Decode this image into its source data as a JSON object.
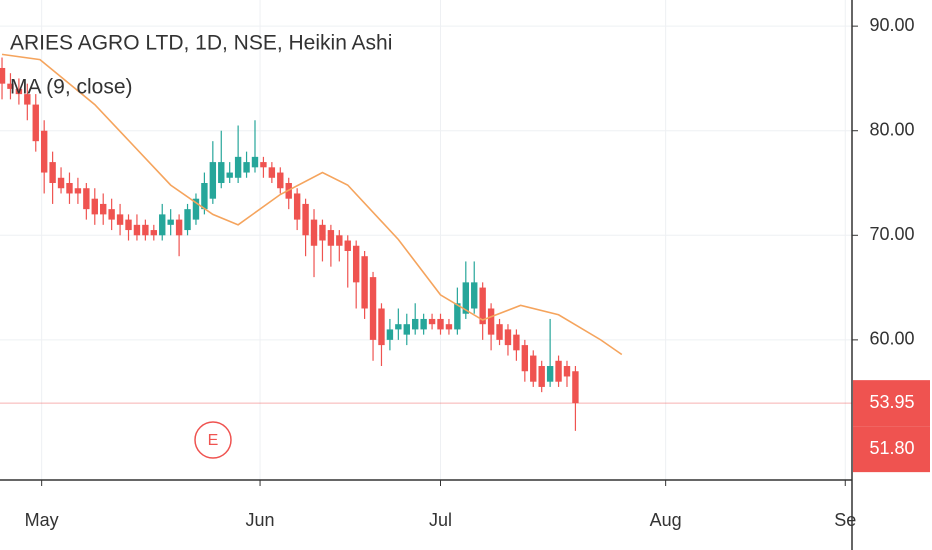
{
  "chart_data": {
    "type": "candlestick",
    "title": "ARIES AGRO LTD, 1D, NSE, Heikin Ashi",
    "up_color": "#26a69a",
    "down_color": "#ef5350",
    "open": [
      86,
      84.5,
      84,
      83.5,
      82.5,
      80,
      77,
      75.5,
      75,
      74.5,
      74.5,
      73.5,
      73,
      72.5,
      72,
      71.5,
      71,
      71,
      70.5,
      70,
      71,
      71.5,
      70.5,
      71.5,
      72.5,
      73.5,
      75,
      75.5,
      75.5,
      76,
      76.5,
      77,
      76.5,
      76,
      75,
      74,
      73,
      71.5,
      71,
      70.5,
      70,
      69.5,
      69,
      68,
      66,
      63,
      60,
      61,
      60.5,
      61,
      61,
      62,
      62,
      61.5,
      61,
      62.5,
      63,
      65,
      63,
      61.5,
      61,
      60.5,
      59.5,
      58.5,
      57.5,
      56,
      58,
      57.5,
      57
    ],
    "high": [
      87,
      85.5,
      85,
      84.5,
      83.5,
      81,
      78,
      76.5,
      76,
      75.5,
      75,
      74.5,
      74,
      73.5,
      73,
      72,
      72,
      71.5,
      71,
      73,
      72.5,
      72,
      73,
      74,
      76,
      79,
      80,
      77,
      80.5,
      78,
      81,
      77.5,
      77,
      76.5,
      75.5,
      74.5,
      73.5,
      72.5,
      71.5,
      71,
      70.5,
      70,
      69.5,
      68.5,
      66.5,
      63.5,
      62,
      63,
      62.5,
      63.5,
      62.5,
      62.5,
      62.5,
      62,
      65,
      67.5,
      67.5,
      65.5,
      63.5,
      62,
      61.5,
      61,
      60,
      59,
      58,
      62,
      58.5,
      58,
      57.5
    ],
    "low": [
      83,
      83,
      82.5,
      81,
      78,
      74,
      73,
      74,
      73,
      73,
      71.5,
      71,
      71,
      70.5,
      70,
      69.5,
      69.5,
      69.5,
      69.5,
      69.5,
      70,
      68,
      70,
      71,
      72,
      73,
      74.5,
      75,
      75,
      75.5,
      76,
      75.5,
      75,
      74,
      72.5,
      70.5,
      68,
      66,
      67.5,
      67,
      67.5,
      65,
      63,
      62,
      58,
      57.5,
      59,
      60,
      59.5,
      60.5,
      60.5,
      61,
      60.5,
      60.5,
      60.5,
      62,
      62.5,
      60,
      59,
      59.5,
      58.5,
      58,
      56,
      55.5,
      55,
      55.5,
      55.5,
      55.5,
      51.3
    ],
    "close": [
      84.5,
      84,
      83.5,
      82.5,
      79,
      76,
      75,
      74.5,
      74,
      74,
      72.5,
      72,
      72,
      71.5,
      71,
      70.5,
      70,
      70,
      70,
      72,
      71.5,
      70,
      72.5,
      73.5,
      75,
      77,
      77,
      76,
      77.5,
      77,
      77.5,
      76.5,
      75.5,
      74.5,
      73.5,
      71.5,
      70,
      69,
      69.5,
      69,
      69,
      68.5,
      65.5,
      63,
      60,
      59.5,
      61,
      61.5,
      61.5,
      62,
      62,
      61.5,
      61,
      61,
      63.5,
      65.5,
      65.5,
      61.5,
      60.5,
      60,
      59.5,
      59,
      57,
      56,
      55.5,
      57.5,
      56,
      56.5,
      53.95
    ],
    "series": [
      {
        "name": "MA (9, close)",
        "color": "#f5a45d",
        "x": [
          0,
          4.5,
          11,
          20,
          25,
          28,
          33,
          38,
          41,
          47,
          52,
          57,
          61.5,
          66,
          71,
          73.5
        ],
        "values": [
          87.3,
          86.8,
          82.5,
          74.8,
          72,
          71,
          73.9,
          76,
          74.8,
          69.6,
          64.3,
          61.9,
          63.3,
          62.4,
          60,
          58.6
        ]
      }
    ],
    "price_markers": {
      "values": [
        53.95,
        51.8
      ],
      "value_labels": [
        "53.95",
        "51.80"
      ],
      "color": "#ef5350"
    },
    "event_marker": "E",
    "xlim": [
      -0.24,
      100.8
    ],
    "xticks": [
      {
        "value": 4.7,
        "label": "May"
      },
      {
        "value": 30.6,
        "label": "Jun"
      },
      {
        "value": 52,
        "label": "Jul"
      },
      {
        "value": 78.7,
        "label": "Aug"
      },
      {
        "value": 100,
        "label": "Se"
      }
    ],
    "ylim": [
      46.6,
      92.5
    ],
    "yticks": [
      {
        "value": 60,
        "label": "60.00"
      },
      {
        "value": 70,
        "label": "70.00"
      },
      {
        "value": 80,
        "label": "80.00"
      },
      {
        "value": 90,
        "label": "90.00"
      }
    ],
    "grid": true
  }
}
